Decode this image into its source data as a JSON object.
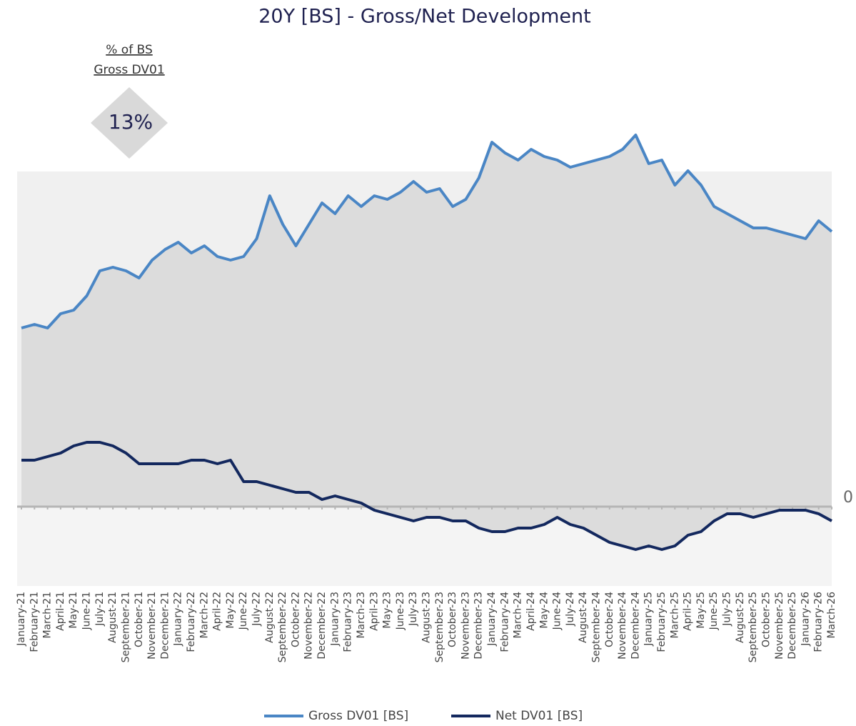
{
  "chart_data": {
    "type": "line",
    "title": "20Y [BS] - Gross/Net Development",
    "annotations": [
      "% of BS",
      "Gross DV01",
      "13%"
    ],
    "categories": [
      "January-21",
      "February-21",
      "March-21",
      "April-21",
      "May-21",
      "June-21",
      "July-21",
      "August-21",
      "September-21",
      "October-21",
      "November-21",
      "December-21",
      "January-22",
      "February-22",
      "March-22",
      "April-22",
      "May-22",
      "June-22",
      "July-22",
      "August-22",
      "September-22",
      "October-22",
      "November-22",
      "December-22",
      "January-23",
      "February-23",
      "March-23",
      "April-23",
      "May-23",
      "June-23",
      "July-23",
      "August-23",
      "September-23",
      "October-23",
      "November-23",
      "December-23",
      "January-24",
      "February-24",
      "March-24",
      "April-24",
      "May-24",
      "June-24",
      "July-24",
      "August-24",
      "September-24",
      "October-24",
      "November-24",
      "December-24",
      "January-25",
      "February-25",
      "March-25",
      "April-25",
      "May-25",
      "June-25",
      "July-25",
      "August-25",
      "September-25",
      "October-25",
      "November-25",
      "December-25",
      "January-26",
      "February-26",
      "March-26"
    ],
    "series": [
      {
        "name": "Gross DV01  [BS]",
        "color": "#4a86c5",
        "values": [
          5.0,
          5.1,
          5.0,
          5.4,
          5.5,
          5.9,
          6.6,
          6.7,
          6.6,
          6.4,
          6.9,
          7.2,
          7.4,
          7.1,
          7.3,
          7.0,
          6.9,
          7.0,
          7.5,
          8.7,
          7.9,
          7.3,
          7.9,
          8.5,
          8.2,
          8.7,
          8.4,
          8.7,
          8.6,
          8.8,
          9.1,
          8.8,
          8.9,
          8.4,
          8.6,
          9.2,
          10.2,
          9.9,
          9.7,
          10.0,
          9.8,
          9.7,
          9.5,
          9.6,
          9.7,
          9.8,
          10.0,
          10.4,
          9.6,
          9.7,
          9.0,
          9.4,
          9.0,
          8.4,
          8.2,
          8.0,
          7.8,
          7.8,
          7.7,
          7.6,
          7.5,
          8.0,
          7.7
        ]
      },
      {
        "name": "Net DV01 [BS]",
        "color": "#13285e",
        "values": [
          1.3,
          1.3,
          1.4,
          1.5,
          1.7,
          1.8,
          1.8,
          1.7,
          1.5,
          1.2,
          1.2,
          1.2,
          1.2,
          1.3,
          1.3,
          1.2,
          1.3,
          0.7,
          0.7,
          0.6,
          0.5,
          0.4,
          0.4,
          0.2,
          0.3,
          0.2,
          0.1,
          -0.1,
          -0.2,
          -0.3,
          -0.4,
          -0.3,
          -0.3,
          -0.4,
          -0.4,
          -0.6,
          -0.7,
          -0.7,
          -0.6,
          -0.6,
          -0.5,
          -0.3,
          -0.5,
          -0.6,
          -0.8,
          -1.0,
          -1.1,
          -1.2,
          -1.1,
          -1.2,
          -1.1,
          -0.8,
          -0.7,
          -0.4,
          -0.2,
          -0.2,
          -0.3,
          -0.2,
          -0.1,
          -0.1,
          -0.1,
          -0.2,
          -0.4
        ]
      }
    ],
    "ylim": [
      -2.1,
      10.5
    ],
    "yticks": [
      0
    ],
    "legend": "bottom"
  }
}
